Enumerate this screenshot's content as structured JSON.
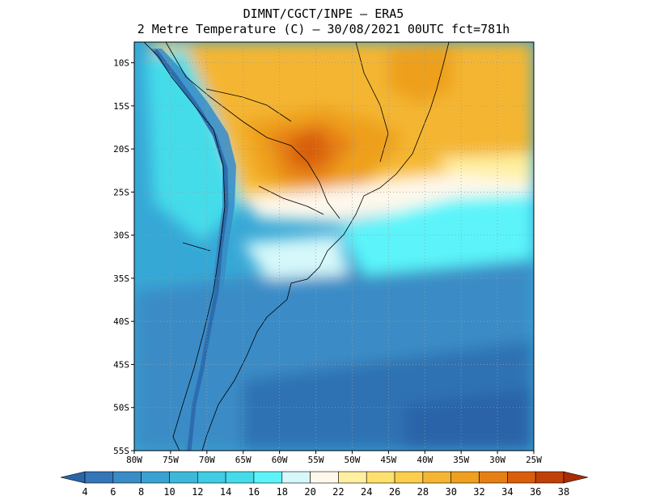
{
  "header": {
    "line1": "DIMNT/CGCT/INPE —  ERA5",
    "line2": "2 Metre Temperature (C) —  30/08/2021 00UTC fct=781h"
  },
  "map": {
    "lat_labels": [
      "10S",
      "15S",
      "20S",
      "25S",
      "30S",
      "35S",
      "40S",
      "45S",
      "50S",
      "55S"
    ],
    "lat_values": [
      -10,
      -15,
      -20,
      -25,
      -30,
      -35,
      -40,
      -45,
      -50,
      -55
    ],
    "lon_labels": [
      "80W",
      "75W",
      "70W",
      "65W",
      "60W",
      "55W",
      "50W",
      "45W",
      "40W",
      "35W",
      "30W",
      "25W"
    ],
    "lon_values": [
      -80,
      -75,
      -70,
      -65,
      -60,
      -55,
      -50,
      -45,
      -40,
      -35,
      -30,
      -25
    ],
    "lon_range": [
      -80,
      -25
    ],
    "lat_range": [
      -55,
      -7.6
    ]
  },
  "colorbar": {
    "labels": [
      "4",
      "6",
      "8",
      "10",
      "12",
      "14",
      "16",
      "18",
      "20",
      "22",
      "24",
      "26",
      "28",
      "30",
      "32",
      "34",
      "36",
      "38"
    ],
    "colors": [
      "#2a64a8",
      "#3476b8",
      "#3a8cc6",
      "#3aa2d2",
      "#3eb8da",
      "#40cce2",
      "#44dcea",
      "#5cf4fa",
      "#d6f8fa",
      "#fef8ec",
      "#fef0a0",
      "#fee06e",
      "#fcce4c",
      "#f4b632",
      "#eea01e",
      "#e68014",
      "#d85e0c",
      "#c04008",
      "#a82c04"
    ]
  }
}
